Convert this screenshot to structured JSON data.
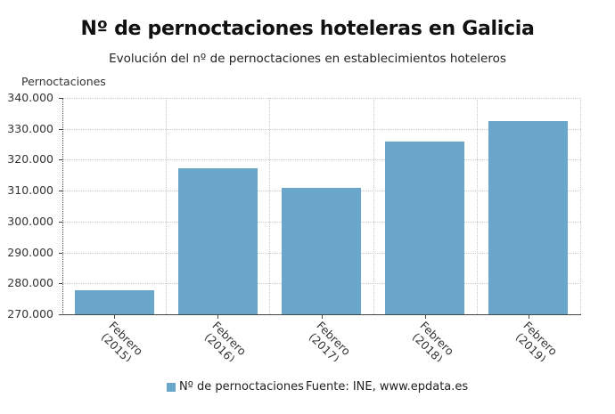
{
  "title": "Nº de pernoctaciones hoteleras en Galicia",
  "subtitle": "Evolución del nº de pernoctaciones en establecimientos hoteleros",
  "y_axis_title": "Pernoctaciones",
  "y_ticks": [
    "340.000",
    "330.000",
    "320.000",
    "310.000",
    "300.000",
    "290.000",
    "280.000",
    "270.000"
  ],
  "x_labels": [
    {
      "line1": "Febrero",
      "line2": "(2015)"
    },
    {
      "line1": "Febrero",
      "line2": "(2016)"
    },
    {
      "line1": "Febrero",
      "line2": "(2017)"
    },
    {
      "line1": "Febrero",
      "line2": "(2018)"
    },
    {
      "line1": "Febrero",
      "line2": "(2019)"
    }
  ],
  "legend": {
    "series_name": "Nº de pernoctaciones",
    "color": "#6aa6c9"
  },
  "source": "Fuente: INE, www.epdata.es",
  "chart_data": {
    "type": "bar",
    "title": "Nº de pernoctaciones hoteleras en Galicia",
    "subtitle": "Evolución del nº de pernoctaciones en establecimientos hoteleros",
    "xlabel": "",
    "ylabel": "Pernoctaciones",
    "categories": [
      "Febrero (2015)",
      "Febrero (2016)",
      "Febrero (2017)",
      "Febrero (2018)",
      "Febrero (2019)"
    ],
    "series": [
      {
        "name": "Nº de pernoctaciones",
        "color": "#6aa6c9",
        "values": [
          277800,
          317300,
          310900,
          325900,
          332500
        ]
      }
    ],
    "ylim": [
      270000,
      340000
    ],
    "y_tick_step": 10000,
    "grid": true,
    "legend_position": "bottom",
    "source": "Fuente: INE, www.epdata.es"
  }
}
